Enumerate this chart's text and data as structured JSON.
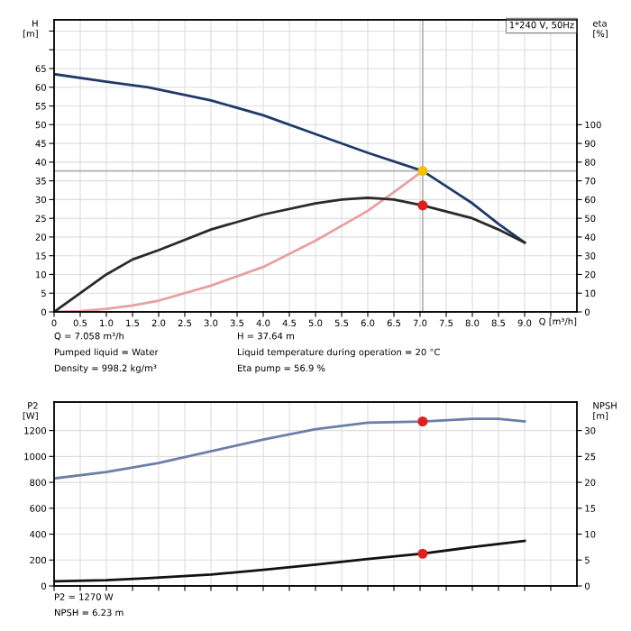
{
  "chart_data": [
    {
      "type": "line",
      "subtitle": "1*240 V, 50Hz",
      "xlabel": "Q [m³/h]",
      "ylabel": "H\n[m]",
      "y2label": "eta\n[%]",
      "xlim": [
        0,
        10
      ],
      "xticks": [
        0,
        0.5,
        {
          "value": 1,
          "label": "1.0"
        },
        1.5,
        {
          "value": 2,
          "label": "2.0"
        },
        2.5,
        {
          "value": 3,
          "label": "3.0"
        },
        3.5,
        {
          "value": 4,
          "label": "4.0"
        },
        4.5,
        {
          "value": 5,
          "label": "5.0"
        },
        5.5,
        {
          "value": 6,
          "label": "6.0"
        },
        6.5,
        {
          "value": 7,
          "label": "7.0"
        },
        7.5,
        {
          "value": 8,
          "label": "8.0"
        },
        8.5,
        {
          "value": 9,
          "label": "9.0"
        },
        {
          "value": 9.5,
          "label": null
        }
      ],
      "ylim": [
        0,
        78
      ],
      "yticks": [
        0,
        5,
        10,
        15,
        20,
        25,
        30,
        35,
        40,
        45,
        50,
        55,
        60,
        65,
        {
          "value": 70,
          "label": null
        },
        {
          "value": 75,
          "label": null
        }
      ],
      "y2lim": [
        0,
        156
      ],
      "y2ticks": [
        0,
        10,
        20,
        30,
        40,
        50,
        60,
        70,
        80,
        90,
        100
      ],
      "grid": true,
      "series": [
        {
          "color": "#e8a0a0",
          "x": [
            0,
            0.5,
            1.0,
            1.5,
            2.0,
            3.0,
            4.0,
            5.0,
            6.0,
            6.5,
            7.05
          ],
          "values": [
            0,
            0.2,
            0.8,
            1.7,
            3,
            7,
            12,
            19,
            27,
            32,
            37.64
          ]
        },
        {
          "color": "#1f3a68",
          "x": [
            0,
            1.0,
            1.8,
            3.0,
            4.0,
            5.0,
            6.0,
            7.05,
            8.0,
            8.5,
            9.0
          ],
          "values": [
            63.5,
            61.5,
            60,
            56.5,
            52.5,
            47.5,
            42.5,
            37.64,
            29,
            23.5,
            18.5
          ]
        },
        {
          "axis": "y2",
          "color": "#2a2a2a",
          "x": [
            0,
            1.0,
            1.5,
            2.0,
            3.0,
            4.0,
            5.0,
            5.5,
            6.0,
            6.5,
            7.05,
            8.0,
            8.5,
            9.0
          ],
          "values": [
            0,
            20,
            28,
            33,
            44,
            52,
            58,
            60,
            61,
            60,
            56.9,
            50,
            44,
            37
          ]
        },
        {
          "type": "scatter",
          "axis": "y2",
          "color": "#e02020",
          "marker": "circle",
          "x": [
            7.05
          ],
          "values": [
            56.9
          ]
        },
        {
          "type": "scatter",
          "color": "#f5c000",
          "marker": "circle",
          "x": [
            7.05
          ],
          "values": [
            37.64
          ]
        }
      ],
      "ref_lines": [
        {
          "axis": "y",
          "value": 37.64,
          "color": "#b0b0b0"
        },
        {
          "axis": "x",
          "value": 7.05,
          "color": "#b0b0b0"
        }
      ],
      "annotations": [
        "Q = 7.058 m³/h",
        "Pumped liquid = Water",
        "Density = 998.2 kg/m³",
        "H = 37.64 m",
        "Liquid temperature during operation = 20 °C",
        "Eta pump = 56.9 %"
      ]
    },
    {
      "type": "line",
      "ylabel": "P2\n[W]",
      "y2label": "NPSH\n[m]",
      "tick_labels": "y",
      "xlim": [
        0,
        10
      ],
      "xticks": [
        0,
        0.5,
        1.0,
        1.5,
        2.0,
        2.5,
        3.0,
        3.5,
        4.0,
        4.5,
        5.0,
        5.5,
        6.0,
        6.5,
        7.0,
        7.5,
        8.0,
        8.5,
        9.0,
        9.5
      ],
      "ylim": [
        0,
        1420
      ],
      "yticks": [
        0,
        200,
        400,
        600,
        800,
        1000,
        1200
      ],
      "y2lim": [
        0,
        35.5
      ],
      "y2ticks": [
        0,
        5,
        10,
        15,
        20,
        25,
        30
      ],
      "grid": true,
      "series": [
        {
          "color": "#6a7fa8",
          "x": [
            0,
            1.0,
            2.0,
            3.0,
            4.0,
            5.0,
            6.0,
            7.05,
            8.0,
            8.5,
            9.0
          ],
          "values": [
            830,
            880,
            950,
            1040,
            1130,
            1210,
            1260,
            1270,
            1290,
            1290,
            1270
          ]
        },
        {
          "axis": "y2",
          "color": "#111111",
          "x": [
            0,
            1.0,
            1.8,
            3.0,
            4.0,
            5.0,
            6.0,
            7.05,
            8.0,
            9.0
          ],
          "values": [
            0.9,
            1.1,
            1.5,
            2.2,
            3.1,
            4.1,
            5.2,
            6.23,
            7.5,
            8.7
          ]
        },
        {
          "type": "scatter",
          "color": "#e02020",
          "marker": "circle",
          "x": [
            7.05
          ],
          "values": [
            1270
          ]
        },
        {
          "type": "scatter",
          "axis": "y2",
          "color": "#e02020",
          "marker": "circle",
          "x": [
            7.05
          ],
          "values": [
            6.23
          ]
        }
      ],
      "annotations": [
        "P2 = 1270 W",
        "NPSH = 6.23 m"
      ]
    }
  ]
}
